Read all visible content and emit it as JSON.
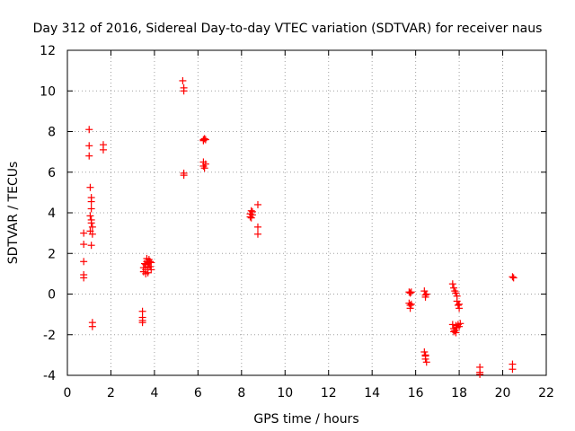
{
  "chart_data": {
    "type": "scatter",
    "title": "Day 312 of 2016, Sidereal Day-to-day VTEC variation (SDTVAR) for receiver naus",
    "xlabel": "GPS time / hours",
    "ylabel": "SDTVAR / TECUs",
    "xlim": [
      0,
      22
    ],
    "ylim": [
      -4,
      12
    ],
    "xticks": [
      0,
      2,
      4,
      6,
      8,
      10,
      12,
      14,
      16,
      18,
      20,
      22
    ],
    "yticks": [
      -4,
      -2,
      0,
      2,
      4,
      6,
      8,
      10,
      12
    ],
    "grid": true,
    "marker": "+",
    "color": "#ff0000",
    "series": [
      {
        "name": "SDTVAR",
        "points": [
          [
            0.75,
            3.0
          ],
          [
            0.75,
            2.45
          ],
          [
            0.75,
            1.6
          ],
          [
            0.75,
            0.95
          ],
          [
            0.75,
            0.8
          ],
          [
            1.0,
            8.1
          ],
          [
            1.0,
            7.3
          ],
          [
            1.0,
            6.8
          ],
          [
            1.05,
            5.25
          ],
          [
            1.1,
            4.75
          ],
          [
            1.1,
            4.55
          ],
          [
            1.1,
            4.2
          ],
          [
            1.05,
            3.85
          ],
          [
            1.1,
            3.65
          ],
          [
            1.1,
            3.5
          ],
          [
            1.15,
            3.3
          ],
          [
            1.05,
            3.1
          ],
          [
            1.15,
            2.95
          ],
          [
            1.1,
            2.4
          ],
          [
            1.15,
            -1.4
          ],
          [
            1.15,
            -1.6
          ],
          [
            1.65,
            7.35
          ],
          [
            1.65,
            7.1
          ],
          [
            3.45,
            -0.85
          ],
          [
            3.45,
            -1.15
          ],
          [
            3.45,
            -1.3
          ],
          [
            3.45,
            -1.4
          ],
          [
            3.5,
            1.1
          ],
          [
            3.5,
            1.3
          ],
          [
            3.55,
            1.5
          ],
          [
            3.6,
            1.0
          ],
          [
            3.6,
            1.2
          ],
          [
            3.6,
            1.45
          ],
          [
            3.65,
            1.6
          ],
          [
            3.65,
            1.75
          ],
          [
            3.7,
            1.3
          ],
          [
            3.7,
            1.05
          ],
          [
            3.7,
            1.5
          ],
          [
            3.75,
            1.7
          ],
          [
            3.75,
            1.55
          ],
          [
            3.8,
            1.35
          ],
          [
            3.8,
            1.6
          ],
          [
            3.85,
            1.2
          ],
          [
            3.85,
            1.55
          ],
          [
            5.3,
            10.5
          ],
          [
            5.35,
            10.15
          ],
          [
            5.35,
            10.0
          ],
          [
            5.35,
            5.95
          ],
          [
            5.35,
            5.85
          ],
          [
            6.25,
            7.6
          ],
          [
            6.25,
            7.55
          ],
          [
            6.3,
            7.65
          ],
          [
            6.35,
            7.6
          ],
          [
            6.25,
            6.5
          ],
          [
            6.25,
            6.3
          ],
          [
            6.3,
            6.2
          ],
          [
            6.35,
            6.4
          ],
          [
            8.4,
            3.95
          ],
          [
            8.45,
            4.1
          ],
          [
            8.4,
            3.8
          ],
          [
            8.45,
            3.75
          ],
          [
            8.5,
            4.05
          ],
          [
            8.5,
            3.9
          ],
          [
            8.75,
            4.4
          ],
          [
            8.75,
            3.3
          ],
          [
            8.75,
            2.95
          ],
          [
            15.7,
            0.1
          ],
          [
            15.75,
            0.05
          ],
          [
            15.8,
            0.1
          ],
          [
            15.7,
            -0.45
          ],
          [
            15.75,
            -0.55
          ],
          [
            15.75,
            -0.7
          ],
          [
            15.8,
            -0.5
          ],
          [
            16.4,
            0.15
          ],
          [
            16.45,
            -0.05
          ],
          [
            16.45,
            -0.15
          ],
          [
            16.5,
            0.0
          ],
          [
            16.4,
            -2.85
          ],
          [
            16.45,
            -3.05
          ],
          [
            16.45,
            -3.2
          ],
          [
            16.5,
            -3.35
          ],
          [
            16.45,
            -3.0
          ],
          [
            17.7,
            0.5
          ],
          [
            17.75,
            0.3
          ],
          [
            17.8,
            0.15
          ],
          [
            17.85,
            0.05
          ],
          [
            17.9,
            -0.1
          ],
          [
            17.9,
            -0.35
          ],
          [
            17.95,
            -0.55
          ],
          [
            18.0,
            -0.5
          ],
          [
            18.0,
            -0.7
          ],
          [
            17.7,
            -1.5
          ],
          [
            17.75,
            -1.7
          ],
          [
            17.8,
            -1.8
          ],
          [
            17.85,
            -1.55
          ],
          [
            17.9,
            -1.65
          ],
          [
            17.95,
            -1.5
          ],
          [
            18.0,
            -1.6
          ],
          [
            18.05,
            -1.45
          ],
          [
            17.75,
            -1.85
          ],
          [
            17.85,
            -1.9
          ],
          [
            18.95,
            -3.6
          ],
          [
            18.95,
            -3.85
          ],
          [
            18.95,
            -3.95
          ],
          [
            20.45,
            0.85
          ],
          [
            20.5,
            0.8
          ],
          [
            20.45,
            -3.45
          ],
          [
            20.45,
            -3.7
          ]
        ]
      }
    ]
  }
}
